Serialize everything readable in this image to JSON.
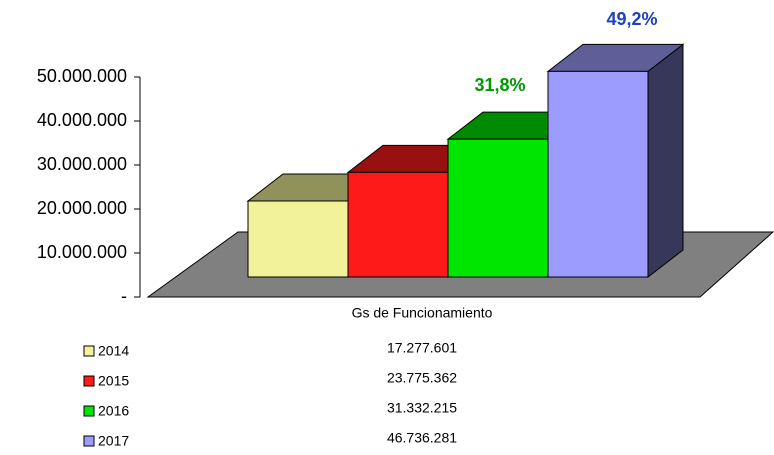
{
  "chart_data": {
    "type": "bar3d",
    "categories": [
      "Gs de Funcionamiento"
    ],
    "series": [
      {
        "name": "2014",
        "color": "#f2f29a",
        "values": [
          17277601
        ],
        "value_labels": [
          "17.277.601"
        ]
      },
      {
        "name": "2015",
        "color": "#ff1a1a",
        "values": [
          23775362
        ],
        "value_labels": [
          "23.775.362"
        ]
      },
      {
        "name": "2016",
        "color": "#00e600",
        "values": [
          31332215
        ],
        "value_labels": [
          "31.332.215"
        ]
      },
      {
        "name": "2017",
        "color": "#9c9cff",
        "values": [
          46736281
        ],
        "value_labels": [
          "46.736.281"
        ]
      }
    ],
    "annotations": [
      {
        "text": "31,8%",
        "color": "#009900"
      },
      {
        "text": "49,2%",
        "color": "#2040c0"
      }
    ],
    "ylim": [
      0,
      50000000
    ],
    "yticks": [
      {
        "value": 0,
        "label": "-"
      },
      {
        "value": 10000000,
        "label": "10.000.000"
      },
      {
        "value": 20000000,
        "label": "20.000.000"
      },
      {
        "value": 30000000,
        "label": "30.000.000"
      },
      {
        "value": 40000000,
        "label": "40.000.000"
      },
      {
        "value": 50000000,
        "label": "50.000.000"
      }
    ]
  }
}
